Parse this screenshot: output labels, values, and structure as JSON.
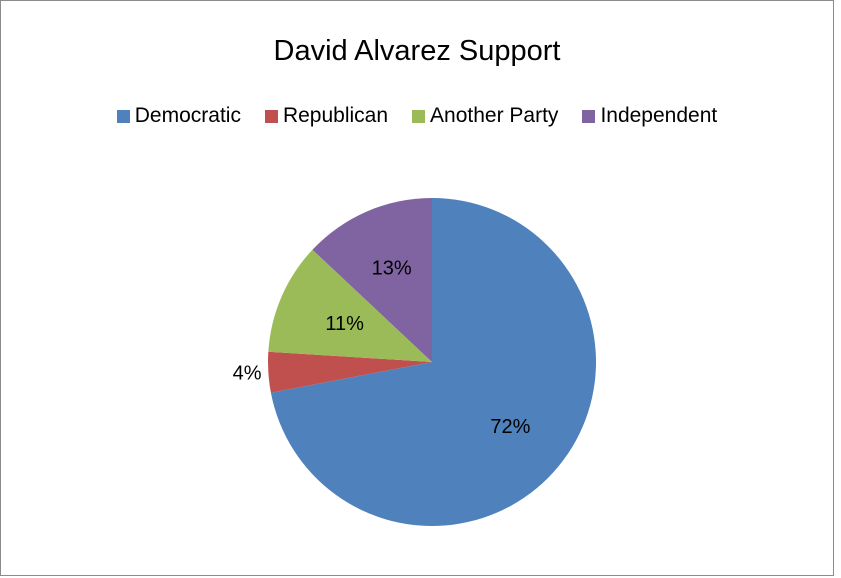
{
  "chart_data": {
    "type": "pie",
    "title": "David Alvarez Support",
    "legend_position": "top",
    "categories": [
      "Democratic",
      "Republican",
      "Another Party",
      "Independent"
    ],
    "values": [
      72,
      4,
      11,
      13
    ],
    "data_labels": [
      "72%",
      "4%",
      "11%",
      "13%"
    ],
    "colors": [
      "#4f81bd",
      "#c0504d",
      "#9bbb59",
      "#8064a2"
    ],
    "start_angle_deg": 0,
    "direction": "clockwise"
  }
}
